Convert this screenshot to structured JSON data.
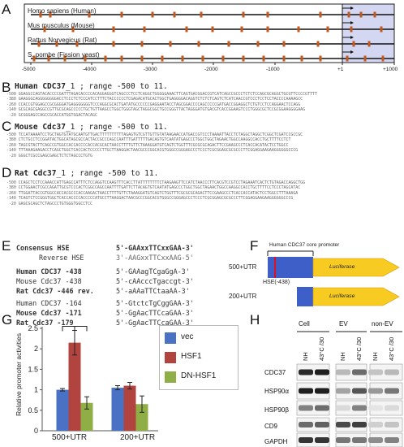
{
  "panel_labels": [
    "A",
    "B",
    "C",
    "D",
    "E",
    "F",
    "G",
    "H"
  ],
  "panelA": {
    "species": [
      "Homo sapiens (Human)",
      "Mus musculus (Mouse)",
      "Rattus Norvegicus (Rat)",
      "S. pombe (Fission yeast)"
    ],
    "axis_ticks": [
      "-5000",
      "-4000",
      "-3000",
      "-2000",
      "-1000",
      "+1",
      "+1000"
    ]
  },
  "panelB": {
    "title_gene": "Human CDC37",
    "title_rest": "_1 ; range -500 to 11.",
    "lines": [
      {
        "pos": "-500",
        "seq": "GGAGGCCAGTACACCCCGATTTAGACACCCCACAGGAGGGTCAGCCCTCCTCAGGCTGGGGGAAACTTCAGTGACGGACCGTCATCAGCCGCCCTCTCTCCAGCGCAGGCTGCGTTCCCCGTTTT"
      },
      {
        "pos": "-380",
        "seq": "GAAGGGCAGGGGGGGGACCTCCCTCTCCCATCCTTTCTACCCCCCTCGAGACATGCACTGGCTGAGGGGACAGGTCTCTCTCAGTCTCATCAACCGTCCCTCCTCCTACCCCAAAAGCC"
      },
      {
        "pos": "-260",
        "seq": "CCACCGTGGAGCCGCGGGGATGAGGGGGGGTCCCAGGCGCACTGATATGCCCCCCGAGGAATACCTAGCGGACCCCAGCCCCCGATGACCGGAGGCTCTGTCCTCCAGGAACTCCAGG"
      },
      {
        "pos": "-140",
        "seq": "GCGCAGCGAGGCCGTTGCGCAGCCCCCTGCTGTTAAGCCTGGCTGGGTAGCTAGGCGGCTGCCGGGTTACTAGGGATGTGACGTCACCGGAAGTCCCTGGGCGCTCCGCGGAAGGGGAAG"
      },
      {
        "pos": "-20",
        "seq": "GCGGGAGCCAGCCGCACCATGGTGGACTACAGC"
      }
    ]
  },
  "panelC": {
    "title_gene": "Mouse Cdc37",
    "title_rest": "_1 ; range -500 to 11.",
    "lines": [
      {
        "pos": "-500",
        "seq": "TCCATAAAATCCTGCTAGTGTATGCAATGTTGACTTTTTTTTTTAGAGTGTCGTTGTTGTATAAGAACCATGACCGTCCCTAAAATTACCTCTAGGCTAGGCTCGGCTCGATCCGCCGC"
      },
      {
        "pos": "-380",
        "seq": "CTCTGCCTCCGGATACTGGCATAGCGCCACTACCGCCCAGCCAATTTGATTTTTGACAGTGTCAATATGAGCCCTGGCTGGCTAGAACTGGCCAAGGCCACCTGCTTTTCCTCT"
      },
      {
        "pos": "-260",
        "seq": "TAGCGTACTTCAGCCGTGGCCACCACCCCACCACGCACTAACCTTTTGTTCTAAAGGATGTCAGTCTGGTTTCGCGCGCAGACTTCCGAAGCCCTCACCACATACTCCTGGCC"
      },
      {
        "pos": "-140",
        "seq": "TTTAAAGAAGACCTCAGCTGGCTCACCACTCCCCCTTGCTTAAGGACTAACGCCCGGCACGTGGGCCGGGAGCCCTCCCTCGCGGAGCGCGCCCTTCGGAGGAAGAAGGGGGGCCCG"
      },
      {
        "pos": "-20",
        "seq": "GGGCTCGCCGAGCGAGCTCTCTAGCCCTGTG"
      }
    ]
  },
  "panelD": {
    "title_gene": "Rat Cdc37",
    "title_rest": "_1 ; range -500 to 11.",
    "lines": [
      {
        "pos": "-500",
        "seq": "CCAGCTCCTCCAAACCATTGAGCCATTTCTCCAGGTCCAAGTTTCACCTTATTTTTTTTCTAAGAAGTTCCATCTAACCCTTCACGTCCGTCCTAGAAATCACTCTGTAGACCAGGCTGG"
      },
      {
        "pos": "-380",
        "seq": "CCTGGAACTCGCCAGATTGCGTCCCACTCGGCCAGCCAATTTTGATTCTTACAGTGTCAATATGAGCCCTGGCTGGCTAGAACTGGCCAAGGCCACCTGCTTTTCCTCCCTAGCATAC"
      },
      {
        "pos": "-260",
        "seq": "TTGGATTACCGTGGCCACCACGCCCACCAAGACTAACCTTTTGTTCTAAAGGATGTCAGTCTGGTTTCGCGCGCAGACTTCCGAAGCCCTCACCACCATACTCCTGGCCTTTAAAGA"
      },
      {
        "pos": "-140",
        "seq": "TCAGTCTCCGGGTGGCTCACCACCCCACCCCCATGCCTTAAGGACTAACGCCCGGCACGTGGGCCGGGAGCCCTCCCTCGCGGAGCGCGCCCTTCGGAGGAAGAAGGGGGGCCCG"
      },
      {
        "pos": "-20",
        "seq": "GAGCGCAGCTCTAGCCCTGTGGGTGGCCTCC"
      }
    ]
  },
  "panelE": {
    "consensus_label": "Consensus HSE",
    "consensus_seq": "5'-GAAxxTTCxxGAA-3'",
    "reverse_label": "Reverse HSE",
    "reverse_seq": "3'-AAGxxTTCxxAAG-5'",
    "rows_bold": [
      {
        "label": "Human CDC37 -438",
        "seq": "5'-GAAagTCgaGgA-3'"
      },
      {
        "label": "Mouse Cdc37 -438",
        "seq": "5'-cAAcccTgaccgt-3'"
      },
      {
        "label": "Rat Cdc37 -446 rev.",
        "seq": "5'-aAAaTTCtaaAA-3'"
      }
    ],
    "rows_second": [
      {
        "label": "Human CDC37 -164",
        "seq": "5'-GtctcTgCggGAA-3'"
      },
      {
        "label": "Mouse Cdc37 -171",
        "seq": "5'-GgAacTTCcaGAA-3'"
      },
      {
        "label": "Rat Cdc37 -179",
        "seq": "5'-GgAacTTCcaGAA-3'"
      }
    ]
  },
  "panelF": {
    "core_promoter_label": "Human CDC37 core promoter",
    "construct_1": "500+UTR",
    "construct_2": "200+UTR",
    "reporter": "Luciferase",
    "hse_label": "HSE(-438)"
  },
  "chart_data": {
    "type": "bar",
    "categories": [
      "500+UTR",
      "200+UTR"
    ],
    "series": [
      {
        "name": "vec",
        "values": [
          1.0,
          1.05
        ],
        "errors": [
          0.03,
          0.05
        ],
        "color": "#4a72c4"
      },
      {
        "name": "HSF1",
        "values": [
          2.15,
          1.1
        ],
        "errors": [
          0.3,
          0.08
        ],
        "color": "#b24440"
      },
      {
        "name": "DN-HSF1",
        "values": [
          0.68,
          0.65
        ],
        "errors": [
          0.15,
          0.2
        ],
        "color": "#8fae46"
      }
    ],
    "ylabel": "Relative promoter activities",
    "yticks": [
      "0",
      "0.5",
      "1",
      "1.5",
      "2",
      "2.5"
    ],
    "ylim": [
      0,
      2.5
    ],
    "significance_marks": [
      "*",
      "*"
    ]
  },
  "panelH": {
    "groups": [
      "Cell",
      "EV",
      "non-EV"
    ],
    "lanes": [
      "NH",
      "43°C /30",
      "NH",
      "43°C /30",
      "NH",
      "43°C /30"
    ],
    "proteins": [
      "CDC37",
      "HSP90α",
      "HSP90β",
      "CD9",
      "GAPDH"
    ]
  }
}
